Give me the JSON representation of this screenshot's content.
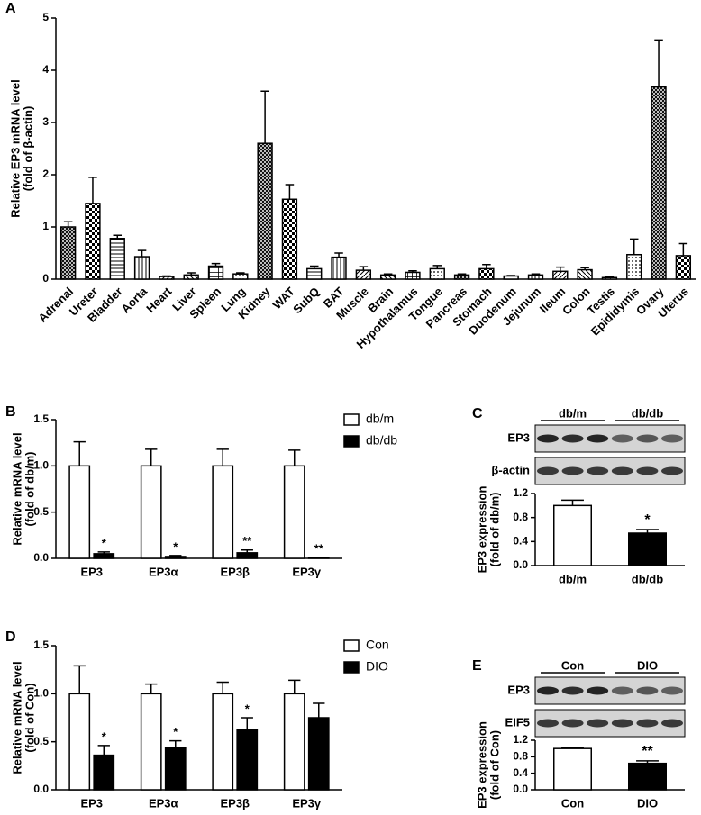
{
  "chart_data": [
    {
      "panel": "A",
      "type": "bar",
      "y_label": [
        "Relative EP3 mRNA level",
        "(fold of  β-actin)"
      ],
      "categories": [
        "Adrenal",
        "Ureter",
        "Bladder",
        "Aorta",
        "Heart",
        "Liver",
        "Spleen",
        "Lung",
        "Kidney",
        "WAT",
        "SubQ",
        "BAT",
        "Muscle",
        "Brain",
        "Hypothalamus",
        "Tongue",
        "Pancreas",
        "Stomach",
        "Duodenum",
        "Jejunum",
        "Ileum",
        "Colon",
        "Testis",
        "Epididymis",
        "Ovary",
        "Uterus"
      ],
      "values": [
        1.0,
        1.45,
        0.78,
        0.43,
        0.05,
        0.08,
        0.25,
        0.1,
        2.6,
        1.53,
        0.2,
        0.42,
        0.17,
        0.08,
        0.13,
        0.2,
        0.08,
        0.2,
        0.06,
        0.08,
        0.15,
        0.18,
        0.03,
        0.47,
        3.68,
        0.45
      ],
      "errors": [
        0.1,
        0.5,
        0.06,
        0.12,
        0.01,
        0.04,
        0.05,
        0.02,
        1.0,
        0.28,
        0.05,
        0.08,
        0.07,
        0.02,
        0.03,
        0.06,
        0.02,
        0.08,
        0.01,
        0.02,
        0.08,
        0.04,
        0.01,
        0.3,
        0.9,
        0.23
      ],
      "color": "#000000",
      "ylim": [
        0,
        5
      ],
      "yticks": [
        0,
        1,
        2,
        3,
        4,
        5
      ]
    },
    {
      "panel": "B",
      "type": "bar",
      "y_label": [
        "Relative mRNA level",
        "(fold of db/m)"
      ],
      "categories": [
        "EP3",
        "EP3α",
        "EP3β",
        "EP3γ"
      ],
      "series": [
        {
          "name": "db/m",
          "color": "#ffffff",
          "values": [
            1,
            1,
            1,
            1
          ],
          "errors": [
            0.26,
            0.18,
            0.18,
            0.17
          ]
        },
        {
          "name": "db/db",
          "color": "#000000",
          "values": [
            0.05,
            0.02,
            0.06,
            0.005
          ],
          "errors": [
            0.02,
            0.01,
            0.03,
            0.005
          ],
          "annotations": [
            "*",
            "*",
            "**",
            "**"
          ]
        }
      ],
      "ylim": [
        0,
        1.5
      ],
      "yticks": [
        {
          "value": 0,
          "label": "0.0"
        },
        0.5,
        {
          "value": 1,
          "label": "1.0"
        },
        1.5
      ],
      "legend": "upper right"
    },
    {
      "panel": "C",
      "type": "bar",
      "blot": {
        "lanes": [
          "db/m",
          "db/db"
        ],
        "rows": [
          "EP3",
          "β-actin"
        ]
      },
      "y_label": [
        "EP3 expression",
        "(fold of db/m)"
      ],
      "categories": [
        "db/m",
        "db/db"
      ],
      "values": [
        1.0,
        0.54
      ],
      "errors": [
        0.09,
        0.06
      ],
      "colors": [
        "#ffffff",
        "#000000"
      ],
      "annotations": [
        null,
        "*"
      ],
      "ylim": [
        0,
        1.2
      ],
      "yticks": [
        {
          "value": 0,
          "label": "0.0"
        },
        0.4,
        0.8,
        1.2
      ]
    },
    {
      "panel": "D",
      "type": "bar",
      "y_label": [
        "Relative mRNA level",
        "(fold of Con)"
      ],
      "categories": [
        "EP3",
        "EP3α",
        "EP3β",
        "EP3γ"
      ],
      "series": [
        {
          "name": "Con",
          "color": "#ffffff",
          "values": [
            1,
            1,
            1,
            1
          ],
          "errors": [
            0.29,
            0.1,
            0.12,
            0.14
          ]
        },
        {
          "name": "DIO",
          "color": "#000000",
          "values": [
            0.36,
            0.44,
            0.63,
            0.75
          ],
          "errors": [
            0.1,
            0.07,
            0.12,
            0.15
          ],
          "annotations": [
            "*",
            "*",
            "*",
            null
          ]
        }
      ],
      "ylim": [
        0,
        1.5
      ],
      "yticks": [
        {
          "value": 0,
          "label": "0.0"
        },
        0.5,
        {
          "value": 1,
          "label": "1.0"
        },
        1.5
      ],
      "legend": "upper right"
    },
    {
      "panel": "E",
      "type": "bar",
      "blot": {
        "lanes": [
          "Con",
          "DIO"
        ],
        "rows": [
          "EP3",
          "EIF5"
        ]
      },
      "y_label": [
        "EP3 expression",
        "(fold of Con)"
      ],
      "categories": [
        "Con",
        "DIO"
      ],
      "values": [
        1.0,
        0.64
      ],
      "errors": [
        0.03,
        0.06
      ],
      "colors": [
        "#ffffff",
        "#000000"
      ],
      "annotations": [
        null,
        "**"
      ],
      "ylim": [
        0,
        1.2
      ],
      "yticks": [
        {
          "value": 0,
          "label": "0.0"
        },
        0.4,
        0.8,
        1.2
      ]
    }
  ]
}
